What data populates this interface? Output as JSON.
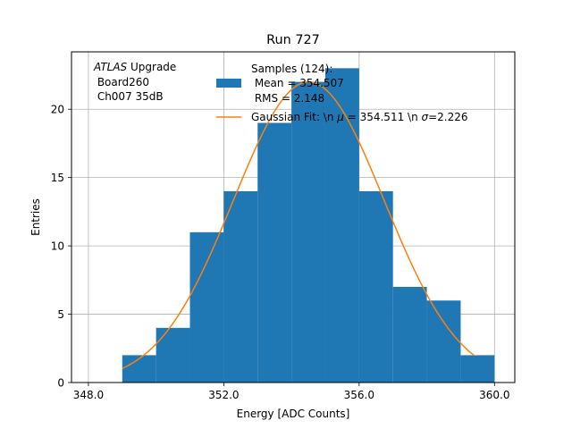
{
  "chart_data": {
    "type": "bar",
    "title": "Run 727",
    "xlabel": "Energy [ADC Counts]",
    "ylabel": "Entries",
    "xlim": [
      347.5,
      360.6
    ],
    "ylim": [
      0,
      24.2
    ],
    "grid": true,
    "x_ticks": [
      348.0,
      352.0,
      356.0,
      360.0
    ],
    "x_tick_labels": [
      "348.0",
      "352.0",
      "356.0",
      "360.0"
    ],
    "y_ticks": [
      0,
      5,
      10,
      15,
      20
    ],
    "y_tick_labels": [
      "0",
      "5",
      "10",
      "15",
      "20"
    ],
    "bin_edges": [
      349,
      350,
      351,
      352,
      353,
      354,
      355,
      356,
      357,
      358,
      359,
      360
    ],
    "counts": [
      2,
      4,
      11,
      14,
      19,
      22,
      23,
      14,
      7,
      6,
      2
    ],
    "series": [
      {
        "name": "Samples (124):\n Mean = 354.507\n RMS = 2.148",
        "label_lines": [
          "Samples (124):",
          " Mean = 354.507",
          " RMS = 2.148"
        ],
        "kind": "histogram",
        "color": "#1f77b4"
      },
      {
        "name": "Gaussian Fit: \\n μ = 354.511 \\n σ=2.226",
        "label_parts": [
          "Gaussian Fit: \\n ",
          "μ",
          " = 354.511 \\n ",
          "σ",
          "=2.226"
        ],
        "kind": "line",
        "color": "#ff7f0e",
        "amplitude": 22,
        "mu": 354.511,
        "sigma": 2.226,
        "x_range": [
          349,
          359.4
        ]
      }
    ],
    "annotation": {
      "italic": "ATLAS",
      "rest": " Upgrade",
      "line2": " Board260",
      "line3": " Ch007 35dB"
    },
    "legend_position": "top-center"
  }
}
